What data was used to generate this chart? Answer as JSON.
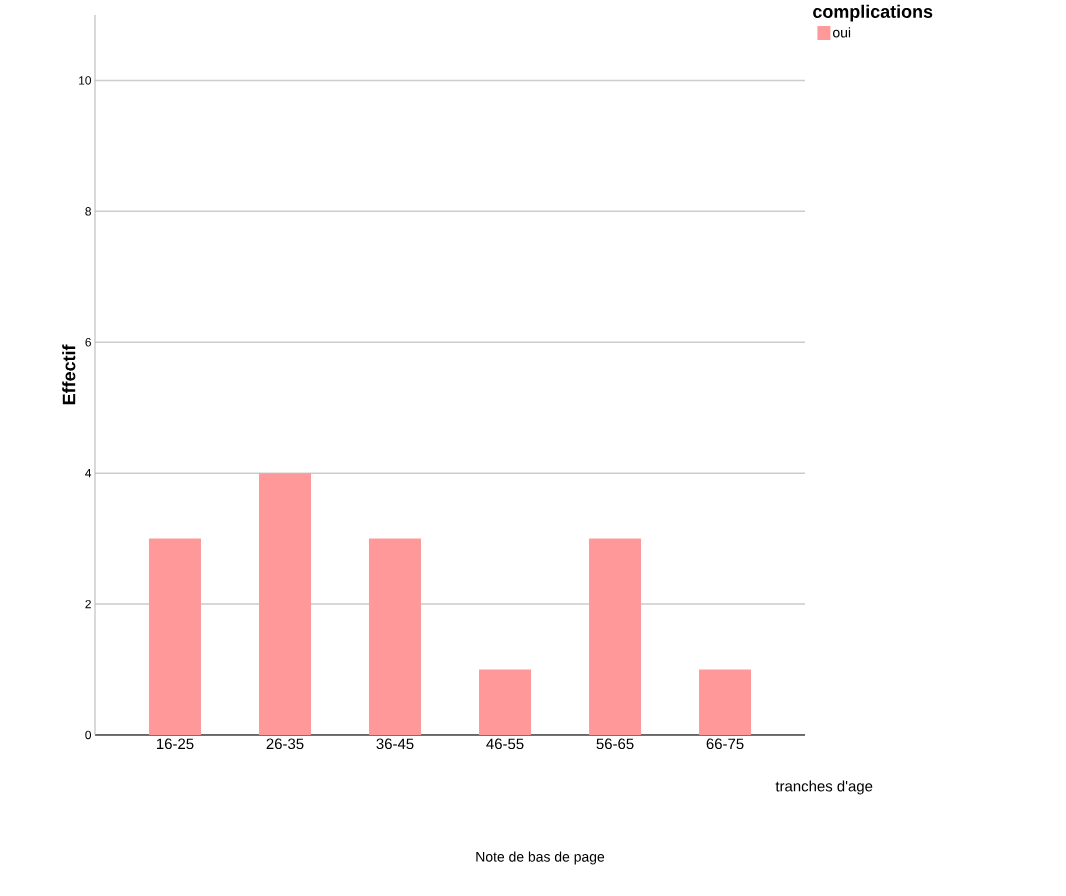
{
  "chart_data": {
    "type": "bar",
    "categories": [
      "16-25",
      "26-35",
      "36-45",
      "46-55",
      "56-65",
      "66-75"
    ],
    "series": [
      {
        "name": "oui",
        "color": "#ff9999",
        "values": [
          3,
          4,
          3,
          1,
          3,
          1
        ]
      }
    ],
    "ylim": [
      0,
      11
    ],
    "yticks": [
      0,
      2,
      4,
      6,
      8,
      10
    ],
    "xlabel": "tranches d'age",
    "ylabel": "Effectif",
    "legend_title": "complications",
    "annotations": [
      "Note de bas de page"
    ],
    "grid": "y",
    "legend": "top right"
  }
}
